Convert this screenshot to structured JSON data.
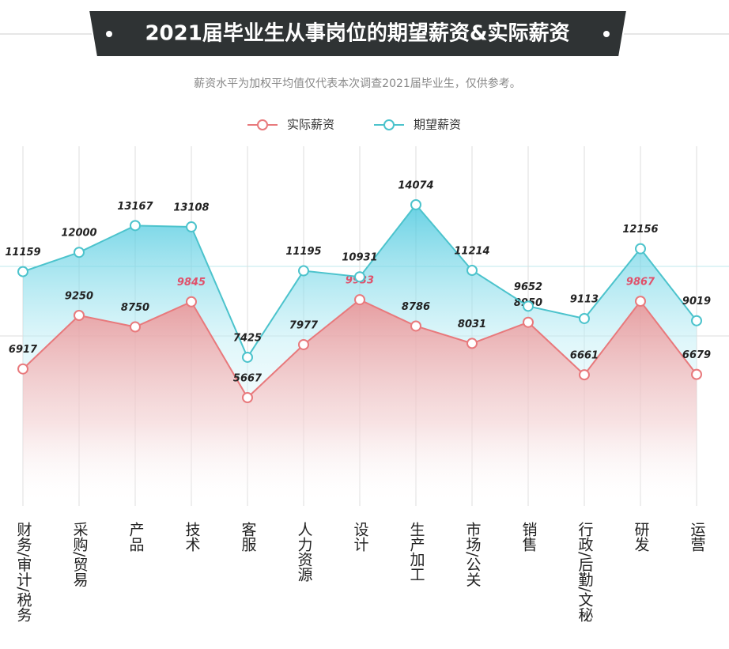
{
  "chart_data": {
    "type": "line",
    "title": "2021届毕业生从事岗位的期望薪资&实际薪资",
    "subtitle": "薪资水平为加权平均值仅代表本次调查2021届毕业生，仅供参考。",
    "categories": [
      "财务/审计/税务",
      "采购/贸易",
      "产品",
      "技术",
      "客服",
      "人力资源",
      "设计",
      "生产加工",
      "市场/公关",
      "销售",
      "行政/后勤/文秘",
      "研发",
      "运营"
    ],
    "series": [
      {
        "name": "实际薪资",
        "color": "#e8797c",
        "values": [
          6917,
          9250,
          8750,
          9845,
          5667,
          7977,
          9933,
          8786,
          8031,
          8950,
          6661,
          9867,
          6679
        ]
      },
      {
        "name": "期望薪资",
        "color": "#4cc3cc",
        "values": [
          11159,
          12000,
          13167,
          13108,
          7425,
          11195,
          10931,
          14074,
          11214,
          9652,
          9113,
          12156,
          9019
        ]
      }
    ],
    "legend": "top"
  }
}
